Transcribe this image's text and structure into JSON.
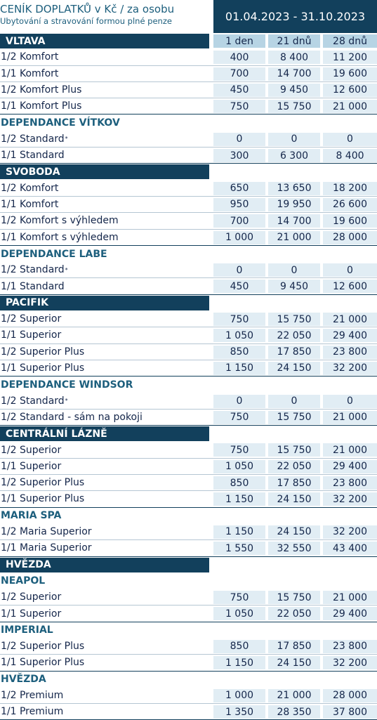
{
  "header": {
    "title": "CENÍK DOPLATKŮ v Kč / za osobu",
    "subtitle": "Ubytování a stravování formou plné penze",
    "period": "01.04.2023 - 31.10.2023"
  },
  "columns": [
    "1 den",
    "21 dnů",
    "28 dnů"
  ],
  "sections": [
    {
      "name": "VLTAVA",
      "style": "bar",
      "rows": [
        {
          "label": "1/2 Komfort",
          "values": [
            "400",
            "8 400",
            "11 200"
          ]
        },
        {
          "label": "1/1 Komfort",
          "values": [
            "700",
            "14 700",
            "19 600"
          ]
        },
        {
          "label": "1/2 Komfort Plus",
          "values": [
            "450",
            "9 450",
            "12 600"
          ]
        },
        {
          "label": "1/1 Komfort Plus",
          "values": [
            "750",
            "15 750",
            "21 000"
          ]
        }
      ]
    },
    {
      "name": "DEPENDANCE VÍTKOV",
      "style": "plain",
      "rows": [
        {
          "label": "1/2 Standard",
          "mark": "*",
          "values": [
            "0",
            "0",
            "0"
          ]
        },
        {
          "label": "1/1 Standard",
          "values": [
            "300",
            "6 300",
            "8 400"
          ]
        }
      ]
    },
    {
      "name": "SVOBODA",
      "style": "bar",
      "rows": [
        {
          "label": "1/2 Komfort",
          "values": [
            "650",
            "13 650",
            "18 200"
          ]
        },
        {
          "label": "1/1 Komfort",
          "values": [
            "950",
            "19 950",
            "26 600"
          ]
        },
        {
          "label": "1/2 Komfort s výhledem",
          "values": [
            "700",
            "14 700",
            "19 600"
          ]
        },
        {
          "label": "1/1 Komfort s výhledem",
          "values": [
            "1 000",
            "21 000",
            "28 000"
          ]
        }
      ]
    },
    {
      "name": "DEPENDANCE LABE",
      "style": "plain",
      "rows": [
        {
          "label": "1/2 Standard",
          "mark": "*",
          "values": [
            "0",
            "0",
            "0"
          ]
        },
        {
          "label": "1/1 Standard",
          "values": [
            "450",
            "9 450",
            "12 600"
          ]
        }
      ]
    },
    {
      "name": "PACIFIK",
      "style": "bar",
      "rows": [
        {
          "label": "1/2 Superior",
          "values": [
            "750",
            "15 750",
            "21 000"
          ]
        },
        {
          "label": "1/1 Superior",
          "values": [
            "1 050",
            "22 050",
            "29 400"
          ]
        },
        {
          "label": "1/2 Superior Plus",
          "values": [
            "850",
            "17 850",
            "23 800"
          ]
        },
        {
          "label": "1/1 Superior Plus",
          "values": [
            "1 150",
            "24 150",
            "32 200"
          ]
        }
      ]
    },
    {
      "name": "DEPENDANCE WINDSOR",
      "style": "plain",
      "rows": [
        {
          "label": "1/2 Standard",
          "mark": "*",
          "values": [
            "0",
            "0",
            "0"
          ]
        },
        {
          "label": "1/2 Standard - sám na pokoji",
          "values": [
            "750",
            "15 750",
            "21 000"
          ]
        }
      ]
    },
    {
      "name": "CENTRÁLNÍ LÁZNĚ",
      "style": "bar",
      "rows": [
        {
          "label": "1/2 Superior",
          "values": [
            "750",
            "15 750",
            "21 000"
          ]
        },
        {
          "label": "1/1 Superior",
          "values": [
            "1 050",
            "22 050",
            "29 400"
          ]
        },
        {
          "label": "1/2 Superior Plus",
          "values": [
            "850",
            "17 850",
            "23 800"
          ]
        },
        {
          "label": "1/1 Superior Plus",
          "values": [
            "1 150",
            "24 150",
            "32 200"
          ]
        }
      ]
    },
    {
      "name": "MARIA SPA",
      "style": "plain",
      "rows": [
        {
          "label": "1/2 Maria Superior",
          "values": [
            "1 150",
            "24 150",
            "32 200"
          ]
        },
        {
          "label": "1/1 Maria Superior",
          "values": [
            "1 550",
            "32 550",
            "43 400"
          ]
        }
      ]
    },
    {
      "name": "HVĚZDA",
      "style": "bar",
      "rows": []
    },
    {
      "name": "NEAPOL",
      "style": "plain",
      "rows": [
        {
          "label": "1/2 Superior",
          "values": [
            "750",
            "15 750",
            "21 000"
          ]
        },
        {
          "label": "1/1 Superior",
          "values": [
            "1 050",
            "22 050",
            "29 400"
          ]
        }
      ]
    },
    {
      "name": "IMPERIAL",
      "style": "plain",
      "rows": [
        {
          "label": "1/2 Superior Plus",
          "values": [
            "850",
            "17 850",
            "23 800"
          ]
        },
        {
          "label": "1/1 Superior Plus",
          "values": [
            "1 150",
            "24 150",
            "32 200"
          ]
        }
      ]
    },
    {
      "name": "HVĚZDA",
      "style": "plain",
      "rows": [
        {
          "label": "1/2 Premium",
          "values": [
            "1 000",
            "21 000",
            "28 000"
          ]
        },
        {
          "label": "1/1 Premium",
          "values": [
            "1 350",
            "28 350",
            "37 800"
          ]
        }
      ]
    }
  ],
  "colors": {
    "dark_navy": "#12405c",
    "cell_light": "#e1edf4",
    "header_cell": "#b7d4e4",
    "title_teal": "#1d5f7d"
  }
}
